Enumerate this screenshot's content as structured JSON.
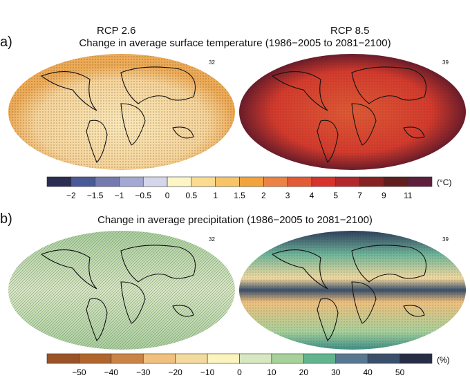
{
  "columns": [
    "RCP 2.6",
    "RCP 8.5"
  ],
  "panel_a": {
    "label": "a)",
    "title": "Change in average surface temperature (1986−2005 to 2081−2100)",
    "model_counts": [
      "32",
      "39"
    ],
    "colorbar": {
      "unit": "(°C)",
      "ticks": [
        "−2",
        "−1.5",
        "−1",
        "−0.5",
        "0",
        "0.5",
        "1",
        "1.5",
        "2",
        "3",
        "4",
        "5",
        "7",
        "9",
        "11"
      ],
      "colors": [
        "#2b2d52",
        "#4a5a98",
        "#7479b0",
        "#a3a9d2",
        "#d6d6ea",
        "#fdf5c6",
        "#fbdc8e",
        "#f8c468",
        "#f2a33c",
        "#ec8244",
        "#e35a34",
        "#d7322c",
        "#b3282b",
        "#872222",
        "#621d1d",
        "#5e1e3c"
      ]
    },
    "map_colors": {
      "rcp26": "#f7d7a0",
      "rcp85": "#d84a30"
    }
  },
  "panel_b": {
    "label": "b)",
    "title": "Change in average precipitation (1986−2005 to 2081−2100)",
    "model_counts": [
      "32",
      "39"
    ],
    "colorbar": {
      "unit": "(%)",
      "ticks": [
        "−50",
        "−40",
        "−30",
        "−20",
        "−10",
        "0",
        "10",
        "20",
        "30",
        "40",
        "50"
      ],
      "colors": [
        "#9a5326",
        "#b0652d",
        "#c98347",
        "#efc07e",
        "#f3dba0",
        "#fcf4bf",
        "#d6e7c1",
        "#a7d09a",
        "#62b48e",
        "#58788f",
        "#3a4f6a",
        "#272d45"
      ]
    },
    "map_colors": {
      "rcp26": "#c8e0b6",
      "rcp85": "#9ccaa0"
    }
  }
}
